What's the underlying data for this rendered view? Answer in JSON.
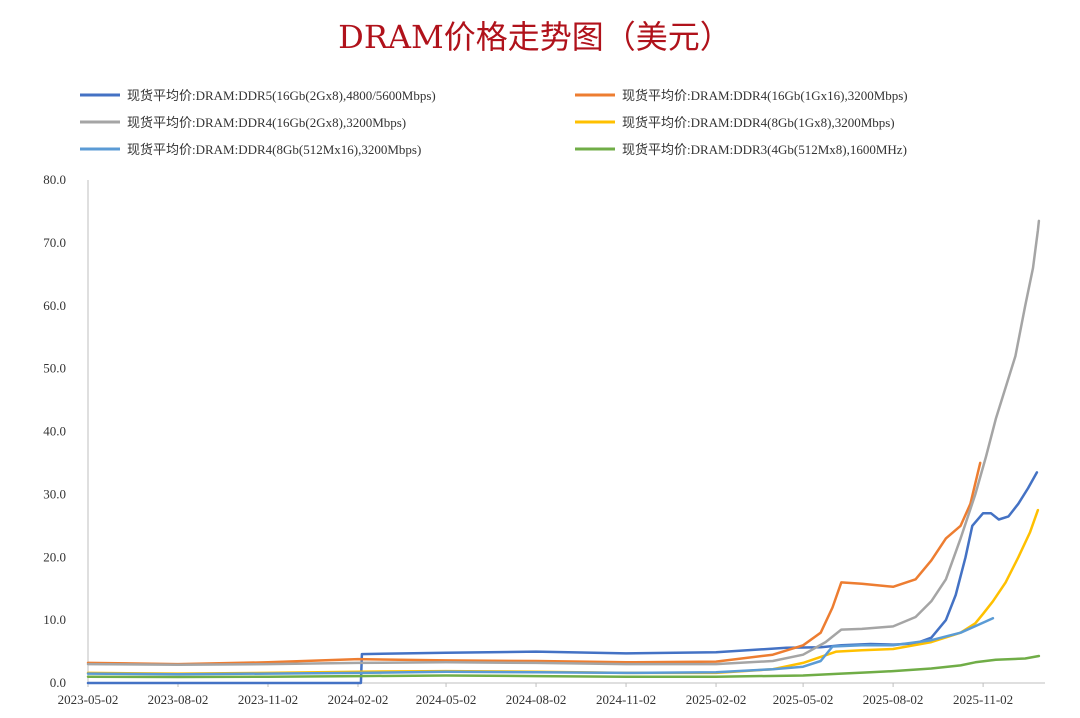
{
  "chart_data": {
    "type": "line",
    "title": "DRAM价格走势图（美元）",
    "xlabel": "",
    "ylabel": "",
    "ylim": [
      0,
      80
    ],
    "y_ticks": [
      "0.0",
      "10.0",
      "20.0",
      "30.0",
      "40.0",
      "50.0",
      "60.0",
      "70.0",
      "80.0"
    ],
    "x_ticks": [
      "2023-05-02",
      "2023-08-02",
      "2023-11-02",
      "2024-02-02",
      "2024-05-02",
      "2024-08-02",
      "2024-11-02",
      "2025-02-02",
      "2025-05-02",
      "2025-08-02",
      "2025-11-02"
    ],
    "grid": false,
    "legend_position": "top",
    "series": [
      {
        "name": "现货平均价:DRAM:DDR5(16Gb(2Gx8),4800/5600Mbps)",
        "color": "#4472c4",
        "points": [
          [
            "2023-05-02",
            0.0
          ],
          [
            "2024-02-05",
            0.0
          ],
          [
            "2024-02-06",
            4.6
          ],
          [
            "2024-05-02",
            4.8
          ],
          [
            "2024-08-02",
            5.0
          ],
          [
            "2024-11-02",
            4.7
          ],
          [
            "2025-02-02",
            4.9
          ],
          [
            "2025-04-15",
            5.6
          ],
          [
            "2025-05-20",
            5.7
          ],
          [
            "2025-06-10",
            6.0
          ],
          [
            "2025-07-10",
            6.2
          ],
          [
            "2025-08-02",
            6.1
          ],
          [
            "2025-08-25",
            6.3
          ],
          [
            "2025-09-10",
            7.2
          ],
          [
            "2025-09-25",
            10.0
          ],
          [
            "2025-10-05",
            14.0
          ],
          [
            "2025-10-15",
            20.0
          ],
          [
            "2025-10-22",
            25.0
          ],
          [
            "2025-11-02",
            27.0
          ],
          [
            "2025-11-10",
            27.0
          ],
          [
            "2025-11-18",
            26.0
          ],
          [
            "2025-11-28",
            26.5
          ],
          [
            "2025-12-08",
            28.5
          ],
          [
            "2025-12-18",
            31.0
          ],
          [
            "2025-12-27",
            33.5
          ]
        ]
      },
      {
        "name": "现货平均价:DRAM:DDR4(16Gb(1Gx16),3200Mbps)",
        "color": "#ed7d31",
        "points": [
          [
            "2023-05-02",
            3.2
          ],
          [
            "2023-08-02",
            3.0
          ],
          [
            "2023-11-02",
            3.3
          ],
          [
            "2024-02-02",
            3.8
          ],
          [
            "2024-05-02",
            3.6
          ],
          [
            "2024-08-02",
            3.5
          ],
          [
            "2024-11-02",
            3.3
          ],
          [
            "2025-02-02",
            3.4
          ],
          [
            "2025-04-01",
            4.5
          ],
          [
            "2025-05-02",
            6.0
          ],
          [
            "2025-05-20",
            8.0
          ],
          [
            "2025-06-01",
            12.0
          ],
          [
            "2025-06-10",
            16.0
          ],
          [
            "2025-07-01",
            15.8
          ],
          [
            "2025-08-02",
            15.3
          ],
          [
            "2025-08-25",
            16.5
          ],
          [
            "2025-09-10",
            19.5
          ],
          [
            "2025-09-25",
            23.0
          ],
          [
            "2025-10-10",
            25.0
          ],
          [
            "2025-10-20",
            28.5
          ],
          [
            "2025-10-30",
            35.0
          ]
        ]
      },
      {
        "name": "现货平均价:DRAM:DDR4(16Gb(2Gx8),3200Mbps)",
        "color": "#a5a5a5",
        "points": [
          [
            "2023-05-02",
            3.0
          ],
          [
            "2023-08-02",
            2.9
          ],
          [
            "2023-11-02",
            3.0
          ],
          [
            "2024-02-02",
            3.2
          ],
          [
            "2024-05-02",
            3.3
          ],
          [
            "2024-08-02",
            3.2
          ],
          [
            "2024-11-02",
            3.0
          ],
          [
            "2025-02-02",
            3.0
          ],
          [
            "2025-04-01",
            3.5
          ],
          [
            "2025-05-02",
            4.5
          ],
          [
            "2025-05-25",
            6.5
          ],
          [
            "2025-06-10",
            8.5
          ],
          [
            "2025-07-01",
            8.6
          ],
          [
            "2025-08-02",
            9.0
          ],
          [
            "2025-08-25",
            10.5
          ],
          [
            "2025-09-10",
            13.0
          ],
          [
            "2025-09-25",
            16.5
          ],
          [
            "2025-10-10",
            23.0
          ],
          [
            "2025-10-25",
            30.0
          ],
          [
            "2025-11-05",
            36.0
          ],
          [
            "2025-11-15",
            42.0
          ],
          [
            "2025-11-25",
            47.0
          ],
          [
            "2025-12-05",
            52.0
          ],
          [
            "2025-12-15",
            60.0
          ],
          [
            "2025-12-23",
            66.0
          ],
          [
            "2025-12-28",
            72.0
          ],
          [
            "2025-12-29",
            73.5
          ]
        ]
      },
      {
        "name": "现货平均价:DRAM:DDR4(8Gb(1Gx8),3200Mbps)",
        "color": "#ffc000",
        "points": [
          [
            "2023-05-02",
            1.6
          ],
          [
            "2023-08-02",
            1.5
          ],
          [
            "2023-11-02",
            1.6
          ],
          [
            "2024-02-02",
            1.8
          ],
          [
            "2024-05-02",
            1.9
          ],
          [
            "2024-08-02",
            1.8
          ],
          [
            "2024-11-02",
            1.6
          ],
          [
            "2025-02-02",
            1.6
          ],
          [
            "2025-04-01",
            2.2
          ],
          [
            "2025-05-02",
            3.2
          ],
          [
            "2025-06-05",
            5.0
          ],
          [
            "2025-07-01",
            5.2
          ],
          [
            "2025-08-02",
            5.4
          ],
          [
            "2025-09-10",
            6.5
          ],
          [
            "2025-10-10",
            8.0
          ],
          [
            "2025-10-25",
            9.5
          ],
          [
            "2025-11-02",
            11.0
          ],
          [
            "2025-11-12",
            13.0
          ],
          [
            "2025-11-25",
            16.0
          ],
          [
            "2025-12-08",
            20.0
          ],
          [
            "2025-12-20",
            24.0
          ],
          [
            "2025-12-28",
            27.5
          ]
        ]
      },
      {
        "name": "现货平均价:DRAM:DDR4(8Gb(512Mx16),3200Mbps)",
        "color": "#5b9bd5",
        "points": [
          [
            "2023-05-02",
            1.5
          ],
          [
            "2023-08-02",
            1.4
          ],
          [
            "2023-11-02",
            1.5
          ],
          [
            "2024-02-02",
            1.6
          ],
          [
            "2024-05-02",
            1.8
          ],
          [
            "2024-08-02",
            1.7
          ],
          [
            "2024-11-02",
            1.6
          ],
          [
            "2025-02-02",
            1.7
          ],
          [
            "2025-04-01",
            2.2
          ],
          [
            "2025-05-02",
            2.6
          ],
          [
            "2025-05-20",
            3.5
          ],
          [
            "2025-06-01",
            5.8
          ],
          [
            "2025-07-01",
            6.0
          ],
          [
            "2025-08-02",
            6.0
          ],
          [
            "2025-09-10",
            6.8
          ],
          [
            "2025-10-10",
            8.0
          ],
          [
            "2025-11-05",
            9.8
          ],
          [
            "2025-11-12",
            10.3
          ]
        ]
      },
      {
        "name": "现货平均价:DRAM:DDR3(4Gb(512Mx8),1600MHz)",
        "color": "#70ad47",
        "points": [
          [
            "2023-05-02",
            1.0
          ],
          [
            "2023-08-02",
            0.95
          ],
          [
            "2023-11-02",
            1.0
          ],
          [
            "2024-02-02",
            1.1
          ],
          [
            "2024-05-02",
            1.2
          ],
          [
            "2024-08-02",
            1.1
          ],
          [
            "2024-11-02",
            1.0
          ],
          [
            "2025-02-02",
            1.0
          ],
          [
            "2025-05-02",
            1.2
          ],
          [
            "2025-06-10",
            1.5
          ],
          [
            "2025-07-10",
            1.7
          ],
          [
            "2025-08-02",
            1.9
          ],
          [
            "2025-09-10",
            2.3
          ],
          [
            "2025-10-10",
            2.8
          ],
          [
            "2025-10-25",
            3.3
          ],
          [
            "2025-11-15",
            3.7
          ],
          [
            "2025-12-15",
            3.9
          ],
          [
            "2025-12-29",
            4.3
          ]
        ]
      }
    ]
  }
}
